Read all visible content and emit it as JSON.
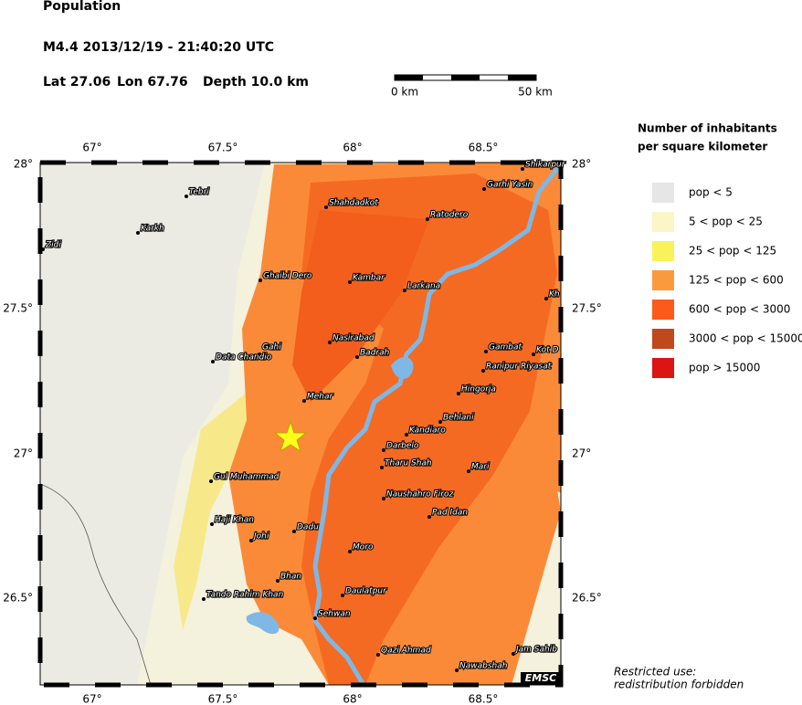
{
  "header": {
    "title": "Population",
    "event": "M4.4  2013/12/19 - 21:40:20 UTC",
    "lat": "Lat 27.06",
    "lon": "Lon  67.76",
    "depth": "Depth  10.0 km"
  },
  "scale": {
    "start": "0 km",
    "end": "50 km"
  },
  "axes": {
    "lon": [
      "67°",
      "67.5°",
      "68°",
      "68.5°"
    ],
    "lat": [
      "28°",
      "27.5°",
      "27°",
      "26.5°"
    ]
  },
  "cities": [
    "Shikarpur",
    "Garhi Yasin",
    "Tebri",
    "Shahdadkot",
    "Ratodero",
    "Karkh",
    "Zidi",
    "Ghaibi Dero",
    "Kambar",
    "Larkana",
    "Kh",
    "Nasirabad",
    "Gahi",
    "Data Chandio",
    "Badrah",
    "Gambat",
    "Kot D",
    "Ranipur Riyasat",
    "Hingorja",
    "Mehar",
    "Behlani",
    "Kandiaro",
    "Darbelo",
    "Tharu Shah",
    "Mari",
    "Gul Muhammad",
    "Naushahro Firoz",
    "Pad Idan",
    "Haji Khan",
    "Dadu",
    "Johi",
    "Moro",
    "Bhan",
    "Daulatpur",
    "Tando Rahim Khan",
    "Sehwan",
    "Qazi Ahmad",
    "Jam Sahib",
    "Nawabshah"
  ],
  "legend": {
    "title": [
      "Number of inhabitants",
      "per square kilometer"
    ],
    "items": [
      {
        "label": "pop < 5",
        "color": "#e6e6e6"
      },
      {
        "label": "5 < pop < 25",
        "color": "#fbf6c8"
      },
      {
        "label": "25 < pop < 125",
        "color": "#faf25a"
      },
      {
        "label": "125 < pop < 600",
        "color": "#fb9a3c"
      },
      {
        "label": "600 < pop < 3000",
        "color": "#fb5a1a"
      },
      {
        "label": "3000 < pop < 15000",
        "color": "#c0491c"
      },
      {
        "label": "pop > 15000",
        "color": "#dc1414"
      }
    ]
  },
  "logo": "EMSC",
  "note": [
    "Restricted use:",
    "redistribution forbidden"
  ]
}
